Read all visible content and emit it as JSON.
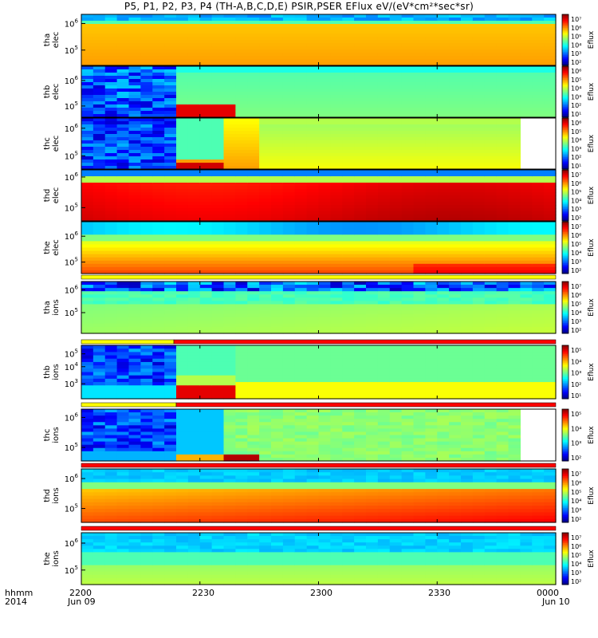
{
  "chart_data": [
    {
      "type": "heatmap",
      "title": "P5, P1, P2, P3, P4 (TH-A,B,C,D,E) PSIR,PSER EFlux eV/(eV*cm²*sec*sr)",
      "x_axis": {
        "corner_label": [
          "hhmm",
          "2014"
        ],
        "ticks": [
          {
            "label": "2200",
            "sublabel": "Jun 09"
          },
          {
            "label": "2230",
            "sublabel": ""
          },
          {
            "label": "2300",
            "sublabel": ""
          },
          {
            "label": "2330",
            "sublabel": ""
          },
          {
            "label": "0000",
            "sublabel": "Jun 10"
          }
        ],
        "range": [
          "2014-06-09 22:00",
          "2014-06-10 00:00"
        ]
      },
      "panels": [
        {
          "ylabel": [
            "tha",
            "elec"
          ],
          "yticks": [
            {
              "mant": "10",
              "exp": "5",
              "f": 0.3
            },
            {
              "mant": "10",
              "exp": "6",
              "f": 0.82
            }
          ],
          "colorbar": {
            "label": "Eflux",
            "ticks": [
              "10⁷",
              "10⁶",
              "10⁵",
              "10⁴",
              "10³",
              "10²"
            ]
          }
        },
        {
          "ylabel": [
            "thb",
            "elec"
          ],
          "yticks": [
            {
              "mant": "10",
              "exp": "5",
              "f": 0.22
            },
            {
              "mant": "10",
              "exp": "6",
              "f": 0.72
            }
          ],
          "colorbar": {
            "label": "Eflux",
            "ticks": [
              "10⁶",
              "10⁵",
              "10⁴",
              "10³",
              "10²",
              "10¹"
            ]
          }
        },
        {
          "ylabel": [
            "thc",
            "elec"
          ],
          "yticks": [
            {
              "mant": "10",
              "exp": "5",
              "f": 0.26
            },
            {
              "mant": "10",
              "exp": "6",
              "f": 0.8
            }
          ],
          "colorbar": {
            "label": "Eflux",
            "ticks": [
              "10⁶",
              "10⁵",
              "10⁴",
              "10³",
              "10²",
              "10¹"
            ]
          }
        },
        {
          "ylabel": [
            "thd",
            "elec"
          ],
          "yticks": [
            {
              "mant": "10",
              "exp": "5",
              "f": 0.26
            },
            {
              "mant": "10",
              "exp": "6",
              "f": 0.86
            }
          ],
          "colorbar": {
            "label": "Eflux",
            "ticks": [
              "10⁷",
              "10⁶",
              "10⁵",
              "10⁴",
              "10³",
              "10²"
            ]
          }
        },
        {
          "ylabel": [
            "the",
            "elec"
          ],
          "yticks": [
            {
              "mant": "10",
              "exp": "5",
              "f": 0.22
            },
            {
              "mant": "10",
              "exp": "6",
              "f": 0.72
            }
          ],
          "colorbar": {
            "label": "Eflux",
            "ticks": [
              "10⁷",
              "10⁶",
              "10⁵",
              "10⁴",
              "10³",
              "10²"
            ]
          }
        },
        {
          "ylabel": [
            "tha",
            "ions"
          ],
          "yticks": [
            {
              "mant": "10",
              "exp": "5",
              "f": 0.4
            },
            {
              "mant": "10",
              "exp": "6",
              "f": 0.84
            }
          ],
          "colorbar": {
            "label": "Eflux",
            "ticks": [
              "10⁷",
              "10⁶",
              "10⁵",
              "10⁴",
              "10³",
              "10²"
            ]
          }
        },
        {
          "ylabel": [
            "thb",
            "ions"
          ],
          "yticks": [
            {
              "mant": "10",
              "exp": "3",
              "f": 0.28
            },
            {
              "mant": "10",
              "exp": "4",
              "f": 0.6
            },
            {
              "mant": "10",
              "exp": "5",
              "f": 0.84
            }
          ],
          "colorbar": {
            "label": "Eflux",
            "ticks": [
              "10⁵",
              "10⁴",
              "10³",
              "10²",
              "10¹"
            ]
          }
        },
        {
          "ylabel": [
            "thc",
            "ions"
          ],
          "yticks": [
            {
              "mant": "10",
              "exp": "5",
              "f": 0.26
            },
            {
              "mant": "10",
              "exp": "6",
              "f": 0.84
            }
          ],
          "colorbar": {
            "label": "Eflux",
            "ticks": [
              "10⁵",
              "10⁴",
              "10³",
              "10²"
            ]
          }
        },
        {
          "ylabel": [
            "thd",
            "ions"
          ],
          "yticks": [
            {
              "mant": "10",
              "exp": "5",
              "f": 0.26
            },
            {
              "mant": "10",
              "exp": "6",
              "f": 0.82
            }
          ],
          "colorbar": {
            "label": "Eflux",
            "ticks": [
              "10⁷",
              "10⁶",
              "10⁵",
              "10⁴",
              "10³",
              "10²"
            ]
          }
        },
        {
          "ylabel": [
            "the",
            "ions"
          ],
          "yticks": [
            {
              "mant": "10",
              "exp": "5",
              "f": 0.28
            },
            {
              "mant": "10",
              "exp": "6",
              "f": 0.8
            }
          ],
          "colorbar": {
            "label": "Eflux",
            "ticks": [
              "10⁷",
              "10⁶",
              "10⁵",
              "10⁴",
              "10³",
              "10²"
            ]
          }
        }
      ]
    }
  ]
}
